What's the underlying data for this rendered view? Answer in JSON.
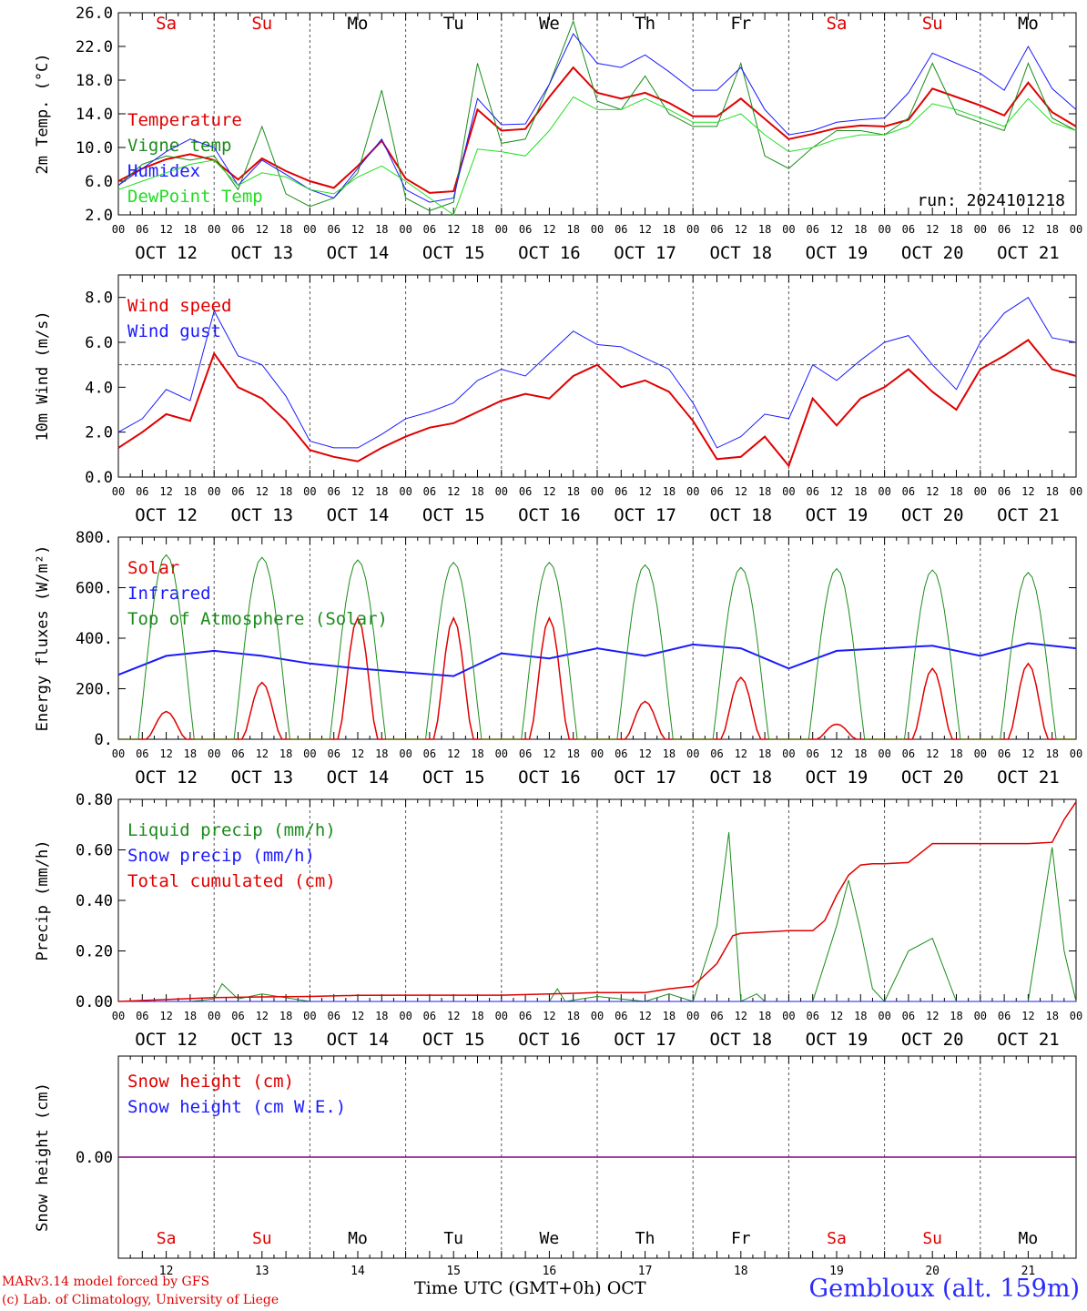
{
  "run_label": "run: 2024101218",
  "day_dates": [
    "OCT 12",
    "OCT 13",
    "OCT 14",
    "OCT 15",
    "OCT 16",
    "OCT 17",
    "OCT 18",
    "OCT 19",
    "OCT 20",
    "OCT 21"
  ],
  "day_names": [
    {
      "text": "Sa",
      "color": "#e00000"
    },
    {
      "text": "Su",
      "color": "#e00000"
    },
    {
      "text": "Mo",
      "color": "#000000"
    },
    {
      "text": "Tu",
      "color": "#000000"
    },
    {
      "text": "We",
      "color": "#000000"
    },
    {
      "text": "Th",
      "color": "#000000"
    },
    {
      "text": "Fr",
      "color": "#000000"
    },
    {
      "text": "Sa",
      "color": "#e00000"
    },
    {
      "text": "Su",
      "color": "#e00000"
    },
    {
      "text": "Mo",
      "color": "#000000"
    }
  ],
  "day_numbers": [
    "12",
    "13",
    "14",
    "15",
    "16",
    "17",
    "18",
    "19",
    "20",
    "21"
  ],
  "hour_ticks": [
    "00",
    "06",
    "12",
    "18"
  ],
  "last_tick": "00",
  "footer": {
    "model": "MARv3.14 model forced by GFS",
    "lab": "(c) Lab. of Climatology, University of Liege",
    "xaxis": "Time UTC (GMT+0h) OCT",
    "station": "Gembloux (alt. 159m)"
  },
  "chart_data": [
    {
      "type": "line",
      "ylabel": "2m Temp. (°C)",
      "ylim": [
        2,
        26
      ],
      "yticks": [
        "2.0",
        "6.0",
        "10.0",
        "14.0",
        "18.0",
        "22.0",
        "26.0"
      ],
      "x_unit": "hours since OCT 12 00 UTC",
      "series": [
        {
          "name": "Temperature",
          "color": "#e00000",
          "width": 2,
          "x": [
            0,
            6,
            12,
            18,
            24,
            30,
            36,
            42,
            48,
            54,
            60,
            66,
            72,
            78,
            84,
            90,
            96,
            102,
            108,
            114,
            120,
            126,
            132,
            138,
            144,
            150,
            156,
            162,
            168,
            174,
            180,
            186,
            192,
            198,
            204,
            210,
            216,
            222,
            228,
            234,
            240
          ],
          "y": [
            6.0,
            7.5,
            8.6,
            9.2,
            8.5,
            6.2,
            8.7,
            7.2,
            6.0,
            5.2,
            7.8,
            10.8,
            6.3,
            4.6,
            4.8,
            14.5,
            12.0,
            12.2,
            16.0,
            19.5,
            16.5,
            15.8,
            16.5,
            15.3,
            13.7,
            13.7,
            15.8,
            13.4,
            11.0,
            11.6,
            12.3,
            12.6,
            12.5,
            13.3,
            17.0,
            16.0,
            15.0,
            13.8,
            17.7,
            14.2,
            12.5
          ]
        },
        {
          "name": "Vigne temp",
          "color": "#1a8c1a",
          "width": 1,
          "x": [
            0,
            6,
            12,
            18,
            24,
            30,
            36,
            42,
            48,
            54,
            60,
            66,
            72,
            78,
            84,
            90,
            96,
            102,
            108,
            114,
            120,
            126,
            132,
            138,
            144,
            150,
            156,
            162,
            168,
            174,
            180,
            186,
            192,
            198,
            204,
            210,
            216,
            222,
            228,
            234,
            240
          ],
          "y": [
            5.5,
            8.0,
            9.0,
            8.5,
            9.0,
            5.0,
            12.5,
            4.5,
            3.0,
            4.0,
            7.0,
            16.8,
            4.0,
            2.5,
            3.5,
            20.0,
            10.5,
            11.0,
            17.5,
            25.0,
            15.5,
            14.5,
            18.5,
            14.0,
            12.5,
            12.5,
            20.0,
            9.0,
            7.5,
            10.0,
            12.0,
            12.0,
            11.5,
            13.5,
            20.0,
            14.0,
            13.0,
            12.0,
            20.0,
            13.5,
            12.0
          ]
        },
        {
          "name": "Humidex",
          "color": "#1a1aff",
          "width": 1,
          "x": [
            0,
            6,
            12,
            18,
            24,
            30,
            36,
            42,
            48,
            54,
            60,
            66,
            72,
            78,
            84,
            90,
            96,
            102,
            108,
            114,
            120,
            126,
            132,
            138,
            144,
            150,
            156,
            162,
            168,
            174,
            180,
            186,
            192,
            198,
            204,
            210,
            216,
            222,
            228,
            234,
            240
          ],
          "y": [
            5.5,
            7.5,
            9.5,
            11.0,
            10.0,
            5.5,
            8.5,
            6.8,
            5.0,
            4.0,
            7.5,
            11.0,
            5.0,
            3.5,
            4.0,
            15.8,
            12.7,
            12.8,
            17.5,
            23.5,
            20.0,
            19.5,
            21.0,
            19.0,
            16.8,
            16.8,
            19.5,
            14.5,
            11.5,
            12.0,
            13.0,
            13.3,
            13.5,
            16.5,
            21.2,
            20.0,
            18.8,
            16.8,
            22.0,
            17.0,
            14.5
          ]
        },
        {
          "name": "DewPoint Temp",
          "color": "#22dd22",
          "width": 1,
          "x": [
            0,
            6,
            12,
            18,
            24,
            30,
            36,
            42,
            48,
            54,
            60,
            66,
            72,
            78,
            84,
            90,
            96,
            102,
            108,
            114,
            120,
            126,
            132,
            138,
            144,
            150,
            156,
            162,
            168,
            174,
            180,
            186,
            192,
            198,
            204,
            210,
            216,
            222,
            228,
            234,
            240
          ],
          "y": [
            5.0,
            6.0,
            7.0,
            8.0,
            8.5,
            5.5,
            7.0,
            6.5,
            5.0,
            4.5,
            6.5,
            7.8,
            6.0,
            4.0,
            2.0,
            9.8,
            9.5,
            9.0,
            12.0,
            16.0,
            14.5,
            14.5,
            15.8,
            14.5,
            13.0,
            13.0,
            14.0,
            11.5,
            9.5,
            10.0,
            11.0,
            11.5,
            11.5,
            12.5,
            15.2,
            14.5,
            13.5,
            12.5,
            15.8,
            13.0,
            12.0
          ]
        }
      ]
    },
    {
      "type": "line",
      "ylabel": "10m Wind (m/s)",
      "ylim": [
        0,
        9
      ],
      "yticks": [
        "0.0",
        "2.0",
        "4.0",
        "6.0",
        "8.0"
      ],
      "hline": 5.0,
      "series": [
        {
          "name": "Wind speed",
          "color": "#e00000",
          "width": 2,
          "x": [
            0,
            6,
            12,
            18,
            24,
            30,
            36,
            42,
            48,
            54,
            60,
            66,
            72,
            78,
            84,
            90,
            96,
            102,
            108,
            114,
            120,
            126,
            132,
            138,
            144,
            150,
            156,
            162,
            168,
            174,
            180,
            186,
            192,
            198,
            204,
            210,
            216,
            222,
            228,
            234,
            240
          ],
          "y": [
            1.3,
            2.0,
            2.8,
            2.5,
            5.5,
            4.0,
            3.5,
            2.5,
            1.2,
            0.9,
            0.7,
            1.3,
            1.8,
            2.2,
            2.4,
            2.9,
            3.4,
            3.7,
            3.5,
            4.5,
            5.0,
            4.0,
            4.3,
            3.8,
            2.5,
            0.8,
            0.9,
            1.8,
            0.5,
            3.5,
            2.3,
            3.5,
            4.0,
            4.8,
            3.8,
            3.0,
            4.8,
            5.4,
            6.1,
            4.8,
            4.5
          ]
        },
        {
          "name": "Wind gust",
          "color": "#1a1aff",
          "width": 1,
          "x": [
            0,
            6,
            12,
            18,
            24,
            30,
            36,
            42,
            48,
            54,
            60,
            66,
            72,
            78,
            84,
            90,
            96,
            102,
            108,
            114,
            120,
            126,
            132,
            138,
            144,
            150,
            156,
            162,
            168,
            174,
            180,
            186,
            192,
            198,
            204,
            210,
            216,
            222,
            228,
            234,
            240
          ],
          "y": [
            2.0,
            2.6,
            3.9,
            3.4,
            7.4,
            5.4,
            5.0,
            3.6,
            1.6,
            1.3,
            1.3,
            1.9,
            2.6,
            2.9,
            3.3,
            4.3,
            4.8,
            4.5,
            5.5,
            6.5,
            5.9,
            5.8,
            5.3,
            4.8,
            3.3,
            1.3,
            1.8,
            2.8,
            2.6,
            5.0,
            4.3,
            5.2,
            6.0,
            6.3,
            5.0,
            3.9,
            6.0,
            7.3,
            8.0,
            6.2,
            6.0
          ]
        }
      ]
    },
    {
      "type": "line",
      "ylabel": "Energy fluxes (W/m²)",
      "ylim": [
        0,
        800
      ],
      "yticks": [
        "0.",
        "200.",
        "400.",
        "600.",
        "800."
      ],
      "series": [
        {
          "name": "Solar",
          "color": "#e00000",
          "width": 1.5,
          "peaks": [
            110,
            225,
            480,
            480,
            480,
            150,
            245,
            60,
            280,
            300
          ]
        },
        {
          "name": "Infrared",
          "color": "#1a1aff",
          "width": 2,
          "x": [
            0,
            12,
            24,
            36,
            48,
            60,
            72,
            84,
            96,
            108,
            120,
            132,
            144,
            156,
            168,
            180,
            192,
            204,
            216,
            228,
            240
          ],
          "y": [
            255,
            330,
            350,
            330,
            300,
            280,
            265,
            250,
            340,
            320,
            360,
            330,
            375,
            360,
            280,
            350,
            360,
            370,
            330,
            380,
            360
          ]
        },
        {
          "name": "Top of Atmosphere (Solar)",
          "color": "#1a8c1a",
          "width": 1,
          "peaks": [
            730,
            720,
            710,
            700,
            700,
            690,
            680,
            675,
            670,
            660
          ]
        }
      ]
    },
    {
      "type": "line",
      "ylabel": "Precip (mm/h)",
      "ylim": [
        0,
        0.8
      ],
      "yticks": [
        "0.00",
        "0.20",
        "0.40",
        "0.60",
        "0.80"
      ],
      "series": [
        {
          "name": "Liquid precip (mm/h)",
          "color": "#1a8c1a",
          "width": 1,
          "x": [
            0,
            18,
            24,
            26,
            30,
            36,
            48,
            60,
            72,
            96,
            108,
            110,
            112,
            120,
            132,
            138,
            144,
            150,
            153,
            156,
            160,
            162,
            168,
            174,
            180,
            183,
            186,
            189,
            192,
            198,
            204,
            210,
            212,
            216,
            228,
            234,
            237,
            240
          ],
          "y": [
            0,
            0,
            0.01,
            0.07,
            0.01,
            0.03,
            0,
            0,
            0,
            0,
            0,
            0.05,
            0,
            0.02,
            0,
            0.03,
            0,
            0.3,
            0.67,
            0,
            0.03,
            0,
            0,
            0,
            0.3,
            0.48,
            0.28,
            0.05,
            0,
            0.2,
            0.25,
            0,
            0,
            0,
            0,
            0.61,
            0.2,
            0
          ]
        },
        {
          "name": "Snow precip (mm/h)",
          "color": "#1a1aff",
          "width": 1,
          "x": [
            0,
            240
          ],
          "y": [
            0,
            0
          ]
        },
        {
          "name": "Total cumulated (cm)",
          "color": "#e00000",
          "width": 1.5,
          "x": [
            0,
            24,
            36,
            48,
            60,
            72,
            96,
            108,
            120,
            132,
            138,
            144,
            150,
            154,
            156,
            168,
            174,
            177,
            180,
            183,
            186,
            189,
            192,
            198,
            204,
            210,
            216,
            228,
            234,
            237,
            240
          ],
          "y": [
            0,
            0.015,
            0.018,
            0.02,
            0.024,
            0.025,
            0.025,
            0.03,
            0.035,
            0.035,
            0.05,
            0.06,
            0.15,
            0.26,
            0.27,
            0.28,
            0.28,
            0.32,
            0.42,
            0.5,
            0.54,
            0.545,
            0.545,
            0.55,
            0.625,
            0.625,
            0.625,
            0.625,
            0.63,
            0.72,
            0.79
          ]
        }
      ]
    },
    {
      "type": "line",
      "ylabel": "Snow height (cm)",
      "ylim": [
        -1,
        1
      ],
      "yticks": [
        "0.00"
      ],
      "series": [
        {
          "name": "Snow height (cm)",
          "color": "#e00000",
          "width": 1,
          "x": [
            0,
            240
          ],
          "y": [
            0,
            0
          ]
        },
        {
          "name": "Snow height (cm W.E.)",
          "color": "#1a1aff",
          "width": 1,
          "x": [
            0,
            240
          ],
          "y": [
            0,
            0
          ]
        }
      ]
    }
  ]
}
